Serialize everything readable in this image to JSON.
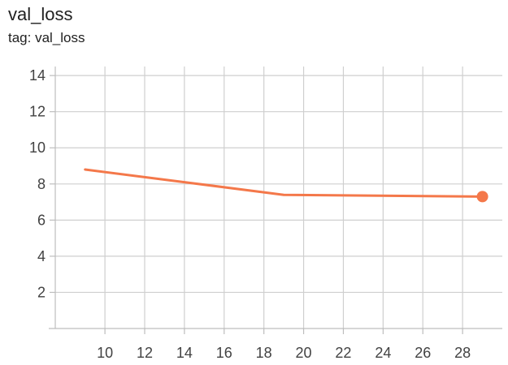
{
  "header": {
    "title": "val_loss",
    "tag_line": "tag: val_loss"
  },
  "chart_data": {
    "type": "line",
    "title": "val_loss",
    "subtitle": "tag: val_loss",
    "xlabel": "",
    "ylabel": "",
    "xlim": [
      7.5,
      30
    ],
    "ylim": [
      0,
      14.5
    ],
    "xticks": [
      10,
      12,
      14,
      16,
      18,
      20,
      22,
      24,
      26,
      28
    ],
    "yticks": [
      2,
      4,
      6,
      8,
      10,
      12,
      14
    ],
    "grid": true,
    "last_point_marker": true,
    "series": [
      {
        "color": "#f4784a",
        "x": [
          9,
          14,
          19,
          29
        ],
        "y": [
          8.8,
          8.1,
          7.4,
          7.3
        ]
      }
    ]
  }
}
